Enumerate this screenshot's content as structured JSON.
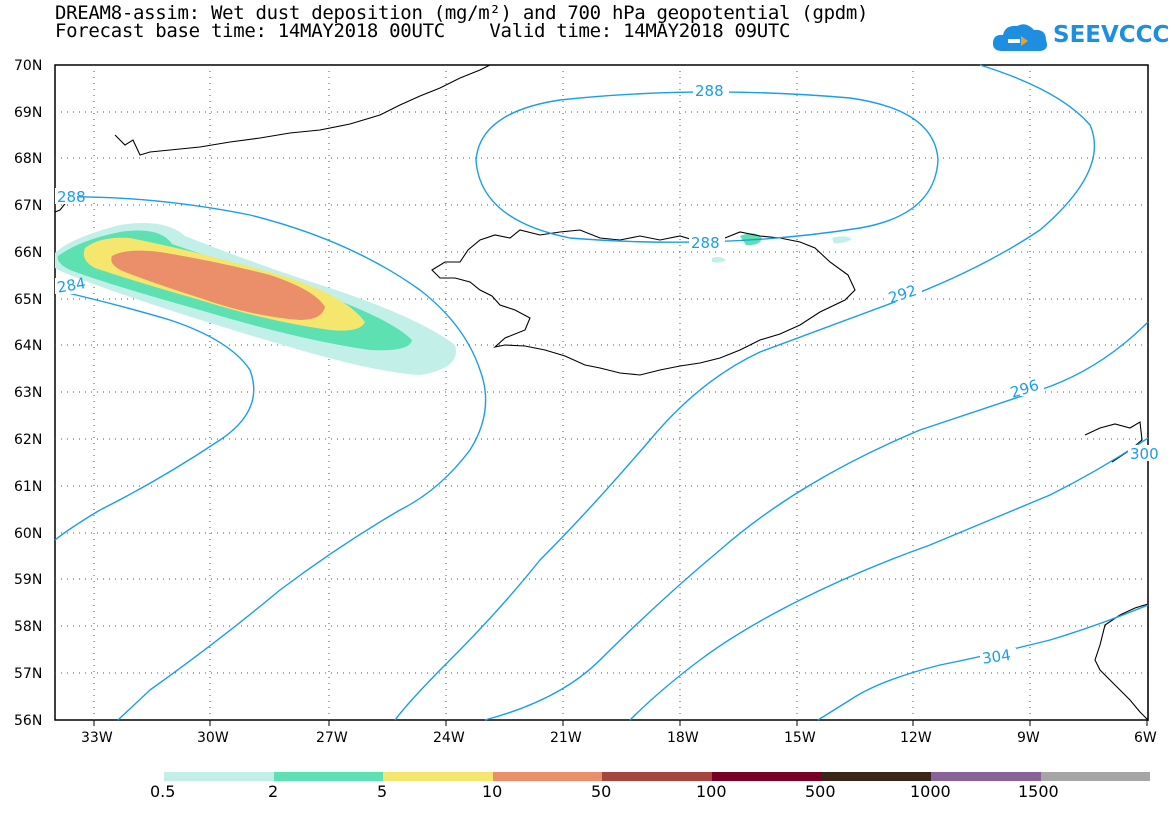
{
  "title": {
    "line1": "DREAM8-assim: Wet dust deposition (mg/m²) and 700 hPa geopotential (gpdm)",
    "line2": "Forecast base time: 14MAY2018 00UTC    Valid time: 14MAY2018 09UTC"
  },
  "logo": {
    "text": "SEEVCCC",
    "icon": "cloud-logo-icon",
    "color": "#1e8fe0"
  },
  "map": {
    "lat_labels": [
      "70N",
      "69N",
      "68N",
      "67N",
      "66N",
      "65N",
      "64N",
      "63N",
      "62N",
      "61N",
      "60N",
      "59N",
      "58N",
      "57N",
      "56N"
    ],
    "lon_labels": [
      "33W",
      "30W",
      "27W",
      "24W",
      "21W",
      "18W",
      "15W",
      "12W",
      "9W",
      "6W"
    ],
    "lat_range": [
      56,
      70
    ],
    "lon_range": [
      -34.3,
      -6
    ]
  },
  "contours": {
    "color": "#1a9ee8",
    "labels": [
      "288",
      "288",
      "292",
      "296",
      "300",
      "304",
      "284",
      "288"
    ]
  },
  "legend": {
    "colors": [
      "#c2f0e8",
      "#5de0b2",
      "#f5e66e",
      "#ea8f6a",
      "#a6443e",
      "#7a0022",
      "#3b2418",
      "#8a6298",
      "#a6a6a6"
    ],
    "labels": [
      "0.5",
      "2",
      "5",
      "10",
      "50",
      "100",
      "500",
      "1000",
      "1500"
    ]
  }
}
